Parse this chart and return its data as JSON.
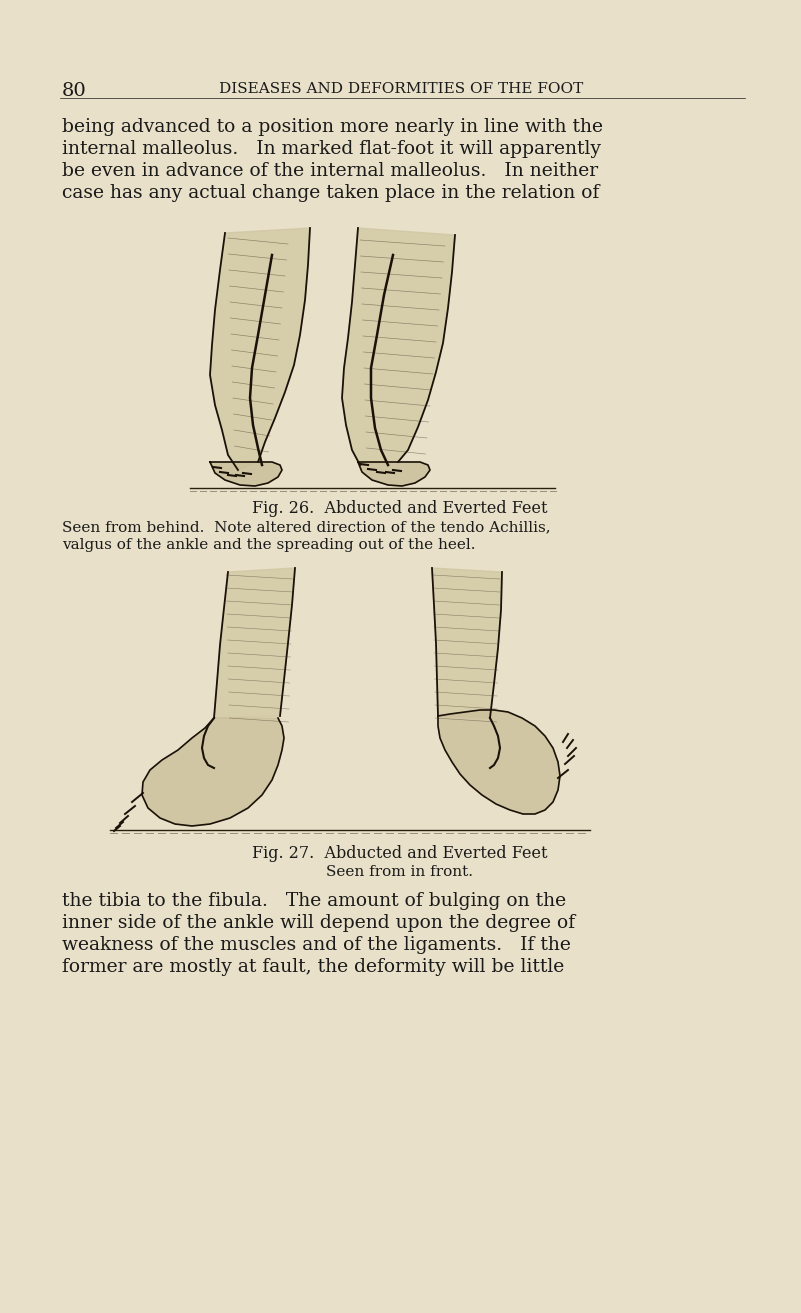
{
  "bg_color": "#e8e0c8",
  "page_number": "80",
  "header_text": "DISEASES AND DEFORMITIES OF THE FOOT",
  "header_fontsize": 11,
  "page_num_fontsize": 14,
  "body_text_1": "being advanced to a position more nearly in line with the\ninternal malleolus.   In marked flat-foot it will apparently\nbe even in advance of the internal malleolus.   In neither\ncase has any actual change taken place in the relation of",
  "fig26_caption_line1": "Fig. 26.  Abducted and Everted Feet",
  "fig26_caption_line2a": "Seen from behind.  Note altered direction of the tendo Achillis,",
  "fig26_caption_line2b": "valgus of the ankle and the spreading out of the heel.",
  "fig27_caption_line1": "Fig. 27.  Abducted and Everted Feet",
  "fig27_caption_line2": "Seen from in front.",
  "body_text_2": "the tibia to the fibula.   The amount of bulging on the\ninner side of the ankle will depend upon the degree of\nweakness of the muscles and of the ligaments.   If the\nformer are mostly at fault, the deformity will be little",
  "body_fontsize": 13.5,
  "caption_fontsize": 11.5,
  "caption_sub_fontsize": 11.0,
  "text_color": "#1a1a1a",
  "fig_width": 801,
  "fig_height": 1313
}
